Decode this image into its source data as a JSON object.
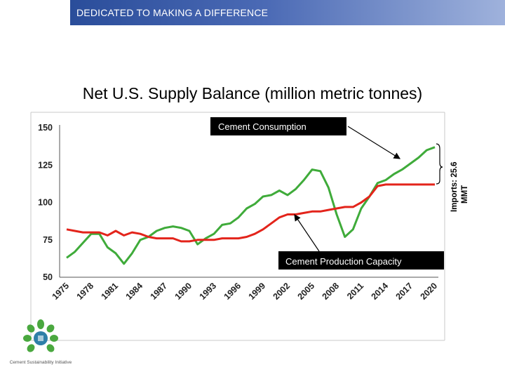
{
  "banner": {
    "text": "DEDICATED TO MAKING A DIFFERENCE"
  },
  "slide": {
    "title": "Net U.S. Supply Balance (million metric tonnes)"
  },
  "colors": {
    "consumption": "#3fab3a",
    "capacity": "#e3241b",
    "banner": "#2f52a0"
  },
  "logo": {
    "icon": "cement-sustainability-initiative-logo",
    "text": "Cement Sustainability Initiative"
  },
  "chart_data": {
    "type": "line",
    "title": "Net U.S. Supply Balance (million metric tonnes)",
    "xlabel": "",
    "ylabel": "",
    "xlim": [
      1975,
      2020
    ],
    "ylim": [
      50,
      150
    ],
    "y_ticks": [
      150,
      125,
      100,
      75,
      50
    ],
    "x_ticks": [
      "1975",
      "1978",
      "1981",
      "1984",
      "1987",
      "1990",
      "1993",
      "1996",
      "1999",
      "2002",
      "2005",
      "2008",
      "2011",
      "2014",
      "2017",
      "2020"
    ],
    "series": [
      {
        "name": "Cement Consumption",
        "color": "#3fab3a",
        "x": [
          1975,
          1976,
          1977,
          1978,
          1979,
          1980,
          1981,
          1982,
          1983,
          1984,
          1985,
          1986,
          1987,
          1988,
          1989,
          1990,
          1991,
          1992,
          1993,
          1994,
          1995,
          1996,
          1997,
          1998,
          1999,
          2000,
          2001,
          2002,
          2003,
          2004,
          2005,
          2006,
          2007,
          2008,
          2009,
          2010,
          2011,
          2012,
          2013,
          2014,
          2015,
          2016,
          2017,
          2018,
          2019,
          2020
        ],
        "values": [
          63,
          67,
          73,
          79,
          79,
          70,
          66,
          59,
          66,
          75,
          77,
          81,
          83,
          84,
          83,
          81,
          72,
          76,
          79,
          85,
          86,
          90,
          96,
          99,
          104,
          105,
          108,
          105,
          109,
          115,
          122,
          121,
          110,
          92,
          77,
          82,
          96,
          104,
          113,
          115,
          119,
          122,
          126,
          130,
          135,
          137
        ]
      },
      {
        "name": "Cement Production Capacity",
        "color": "#e3241b",
        "x": [
          1975,
          1976,
          1977,
          1978,
          1979,
          1980,
          1981,
          1982,
          1983,
          1984,
          1985,
          1986,
          1987,
          1988,
          1989,
          1990,
          1991,
          1992,
          1993,
          1994,
          1995,
          1996,
          1997,
          1998,
          1999,
          2000,
          2001,
          2002,
          2003,
          2004,
          2005,
          2006,
          2007,
          2008,
          2009,
          2010,
          2011,
          2012,
          2013,
          2014,
          2015,
          2016,
          2017,
          2018,
          2019,
          2020
        ],
        "values": [
          82,
          81,
          80,
          80,
          80,
          78,
          81,
          78,
          80,
          79,
          77,
          76,
          76,
          76,
          74,
          74,
          75,
          75,
          75,
          76,
          76,
          76,
          77,
          79,
          82,
          86,
          90,
          92,
          92,
          93,
          94,
          94,
          95,
          96,
          97,
          97,
          100,
          104,
          111,
          112,
          112,
          112,
          112,
          112,
          112,
          112
        ]
      }
    ],
    "annotations": {
      "consumption_label": "Cement Consumption",
      "capacity_label": "Cement Production Capacity",
      "imports_line1": "Imports: 25.6",
      "imports_line2": "MMT"
    }
  }
}
